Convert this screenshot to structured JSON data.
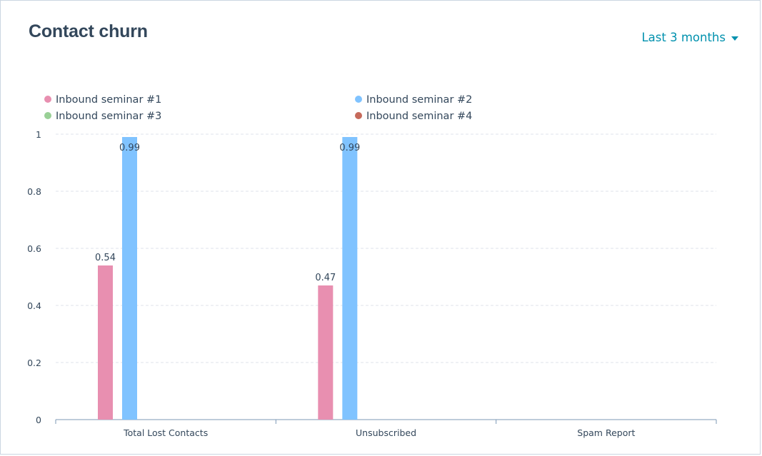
{
  "header": {
    "title": "Contact churn",
    "date_range_label": "Last 3 months"
  },
  "colors": {
    "title": "#33475b",
    "accent": "#0091ae",
    "grid": "#dfe3eb",
    "axis": "#7c98b6"
  },
  "icons": {
    "date_range_caret": "caret-down-icon"
  },
  "chart_data": {
    "type": "bar",
    "categories": [
      "Total Lost Contacts",
      "Unsubscribed",
      "Spam Report"
    ],
    "series": [
      {
        "name": "Inbound seminar #1",
        "color": "#e88fb0",
        "values": [
          0.54,
          0.47,
          null
        ]
      },
      {
        "name": "Inbound seminar #2",
        "color": "#80c3ff",
        "values": [
          0.99,
          0.99,
          null
        ]
      },
      {
        "name": "Inbound seminar #3",
        "color": "#99d096",
        "values": [
          null,
          null,
          null
        ]
      },
      {
        "name": "Inbound seminar #4",
        "color": "#c66a5b",
        "values": [
          null,
          null,
          null
        ]
      }
    ],
    "ylim": [
      0,
      1
    ],
    "yticks": [
      "0",
      "0.2",
      "0.4",
      "0.6",
      "0.8",
      "1"
    ],
    "data_labels": true,
    "grid": true,
    "legend_position": "top-left"
  }
}
